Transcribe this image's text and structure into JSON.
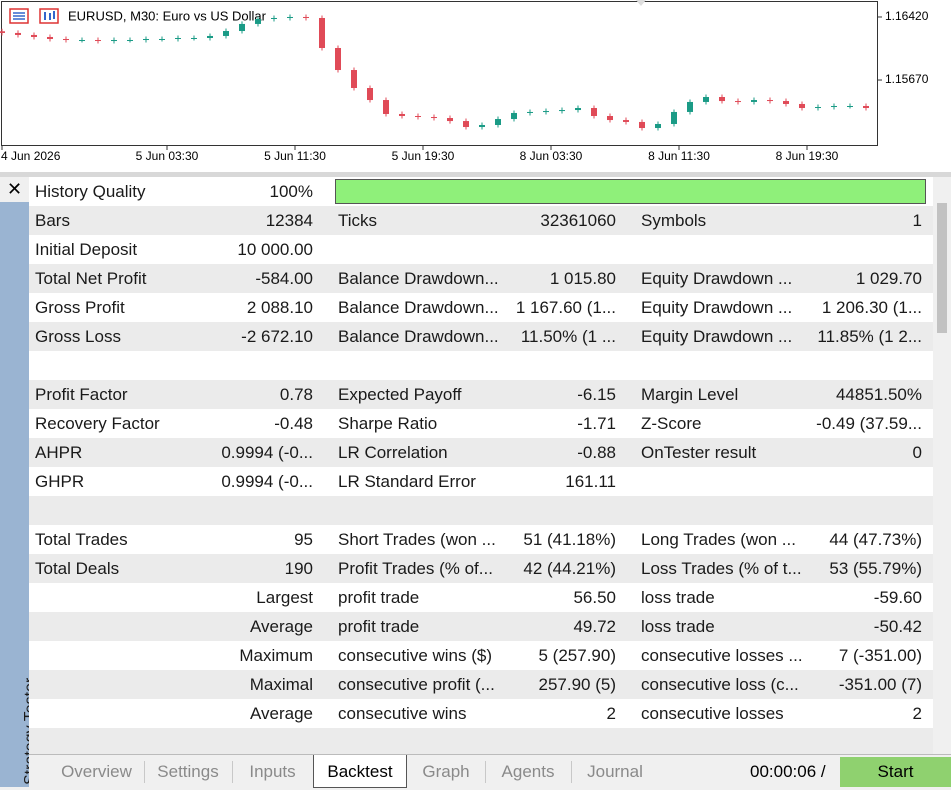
{
  "chart_data": {
    "type": "candlestick",
    "title": "EURUSD, M30:  Euro vs US Dollar",
    "x": [
      0,
      2,
      4,
      6,
      8,
      10,
      12,
      14,
      16,
      18,
      20,
      22,
      24,
      26,
      28,
      30,
      32,
      34,
      36,
      38,
      40,
      42,
      44,
      46,
      48,
      50,
      52,
      54,
      56,
      58,
      60,
      62,
      64,
      66,
      68,
      70,
      72,
      74,
      76,
      78,
      80,
      82,
      84,
      86,
      88,
      90,
      92,
      94,
      96,
      98,
      100,
      102,
      104,
      106,
      108
    ],
    "open": [
      1.1625,
      1.1623,
      1.16206,
      1.16182,
      1.16158,
      1.16146,
      1.16146,
      1.16134,
      1.16146,
      1.16146,
      1.16158,
      1.16158,
      1.1617,
      1.1617,
      1.16194,
      1.16253,
      1.16337,
      1.16396,
      1.16408,
      1.1642,
      1.16408,
      1.16051,
      1.15789,
      1.15575,
      1.15432,
      1.15266,
      1.15242,
      1.1523,
      1.15218,
      1.15182,
      1.15111,
      1.15135,
      1.15206,
      1.15278,
      1.1529,
      1.15301,
      1.15313,
      1.15337,
      1.15242,
      1.15194,
      1.15171,
      1.15099,
      1.15147,
      1.1529,
      1.15409,
      1.15468,
      1.1542,
      1.15409,
      1.15432,
      1.1542,
      1.15385,
      1.15337,
      1.15349,
      1.15361,
      1.15361
    ],
    "high": [
      1.1628,
      1.1626,
      1.16236,
      1.16212,
      1.16188,
      1.16176,
      1.16176,
      1.16176,
      1.16176,
      1.16188,
      1.16188,
      1.162,
      1.162,
      1.16224,
      1.16283,
      1.16367,
      1.16426,
      1.16438,
      1.1645,
      1.1645,
      1.16438,
      1.16081,
      1.15819,
      1.15605,
      1.15462,
      1.15296,
      1.15272,
      1.1526,
      1.15248,
      1.15212,
      1.15165,
      1.15236,
      1.15308,
      1.1532,
      1.15331,
      1.15343,
      1.15367,
      1.15367,
      1.15272,
      1.15224,
      1.15201,
      1.15177,
      1.1532,
      1.15439,
      1.15498,
      1.15498,
      1.1545,
      1.15462,
      1.15462,
      1.1545,
      1.15415,
      1.15379,
      1.15391,
      1.15391,
      1.15391
    ],
    "low": [
      1.162,
      1.16176,
      1.16152,
      1.16128,
      1.16116,
      1.16116,
      1.16104,
      1.16104,
      1.16116,
      1.16116,
      1.16128,
      1.16128,
      1.1614,
      1.1614,
      1.16164,
      1.16223,
      1.16307,
      1.16366,
      1.16378,
      1.16378,
      1.16021,
      1.15759,
      1.15545,
      1.15402,
      1.15236,
      1.15212,
      1.152,
      1.15188,
      1.15152,
      1.15081,
      1.15081,
      1.15105,
      1.15176,
      1.15248,
      1.1526,
      1.15271,
      1.15283,
      1.15212,
      1.15164,
      1.15141,
      1.15069,
      1.15069,
      1.15117,
      1.1526,
      1.15379,
      1.1539,
      1.15379,
      1.15379,
      1.1539,
      1.15355,
      1.15307,
      1.15307,
      1.15319,
      1.15331,
      1.15307
    ],
    "close": [
      1.1623,
      1.16206,
      1.16182,
      1.16158,
      1.16146,
      1.16146,
      1.16134,
      1.16146,
      1.16146,
      1.16158,
      1.16158,
      1.1617,
      1.1617,
      1.16194,
      1.16253,
      1.16337,
      1.16396,
      1.16408,
      1.1642,
      1.16408,
      1.16051,
      1.15789,
      1.15575,
      1.15432,
      1.15266,
      1.15242,
      1.1523,
      1.15218,
      1.15182,
      1.15111,
      1.15135,
      1.15206,
      1.15278,
      1.1529,
      1.15301,
      1.15313,
      1.15337,
      1.15242,
      1.15194,
      1.15171,
      1.15099,
      1.15147,
      1.1529,
      1.15409,
      1.15468,
      1.1542,
      1.15409,
      1.15432,
      1.1542,
      1.15385,
      1.15337,
      1.15349,
      1.15361,
      1.15361,
      1.15337
    ],
    "up_color": "#1a9b86",
    "down_color": "#e04a57",
    "xlim": [
      -0.25,
      109.375
    ],
    "ylim": [
      1.14897,
      1.16622
    ],
    "xticks": [
      {
        "value": 0,
        "label": "4 Jun 2026"
      },
      {
        "value": 20.625,
        "label": "5 Jun 03:30"
      },
      {
        "value": 36.625,
        "label": "5 Jun 11:30"
      },
      {
        "value": 52.625,
        "label": "5 Jun 19:30"
      },
      {
        "value": 68.625,
        "label": "8 Jun 03:30"
      },
      {
        "value": 84.625,
        "label": "8 Jun 11:30"
      },
      {
        "value": 100.625,
        "label": "8 Jun 19:30"
      }
    ],
    "yticks": [
      {
        "value": 1.1642,
        "label": "1.16420"
      },
      {
        "value": 1.1567,
        "label": "1.15670"
      }
    ]
  },
  "side_panel": {
    "title": "Strategy Tester"
  },
  "report": {
    "rows": [
      [
        "History Quality",
        "100%"
      ],
      [
        "Bars",
        "12384",
        "Ticks",
        "32361060",
        "Symbols",
        "1"
      ],
      [
        "Initial Deposit",
        "10 000.00",
        null,
        null,
        null,
        null
      ],
      [
        "Total Net Profit",
        "-584.00",
        "Balance Drawdown...",
        "1 015.80",
        "Equity Drawdown ...",
        "1 029.70"
      ],
      [
        "Gross Profit",
        "2 088.10",
        "Balance Drawdown...",
        "1 167.60 (1...",
        "Equity Drawdown ...",
        "1 206.30 (1..."
      ],
      [
        "Gross Loss",
        "-2 672.10",
        "Balance Drawdown...",
        "11.50% (1 ...",
        "Equity Drawdown ...",
        "11.85% (1 2..."
      ],
      null,
      [
        "Profit Factor",
        "0.78",
        "Expected Payoff",
        "-6.15",
        "Margin Level",
        "44851.50%"
      ],
      [
        "Recovery Factor",
        "-0.48",
        "Sharpe Ratio",
        "-1.71",
        "Z-Score",
        "-0.49 (37.59..."
      ],
      [
        "AHPR",
        "0.9994 (-0...",
        "LR Correlation",
        "-0.88",
        "OnTester result",
        "0"
      ],
      [
        "GHPR",
        "0.9994 (-0...",
        "LR Standard Error",
        "161.11",
        null,
        null
      ],
      null,
      [
        "Total Trades",
        "95",
        "Short Trades (won ...",
        "51 (41.18%)",
        "Long Trades (won ...",
        "44 (47.73%)"
      ],
      [
        "Total Deals",
        "190",
        "Profit Trades (% of...",
        "42 (44.21%)",
        "Loss Trades (% of t...",
        "53 (55.79%)"
      ],
      [
        null,
        "Largest",
        "profit trade",
        "56.50",
        "loss trade",
        "-59.60"
      ],
      [
        null,
        "Average",
        "profit trade",
        "49.72",
        "loss trade",
        "-50.42"
      ],
      [
        null,
        "Maximum",
        "consecutive wins ($)",
        "5 (257.90)",
        "consecutive losses ...",
        "7 (-351.00)"
      ],
      [
        null,
        "Maximal",
        "consecutive profit (...",
        "257.90 (5)",
        "consecutive loss (c...",
        "-351.00 (7)"
      ],
      [
        null,
        "Average",
        "consecutive wins",
        "2",
        "consecutive losses",
        "2"
      ]
    ]
  },
  "tabs": [
    "Overview",
    "Settings",
    "Inputs",
    "Backtest",
    "Graph",
    "Agents",
    "Journal"
  ],
  "active_tab": 3,
  "timer": "00:00:06 /",
  "start_button": "Start"
}
